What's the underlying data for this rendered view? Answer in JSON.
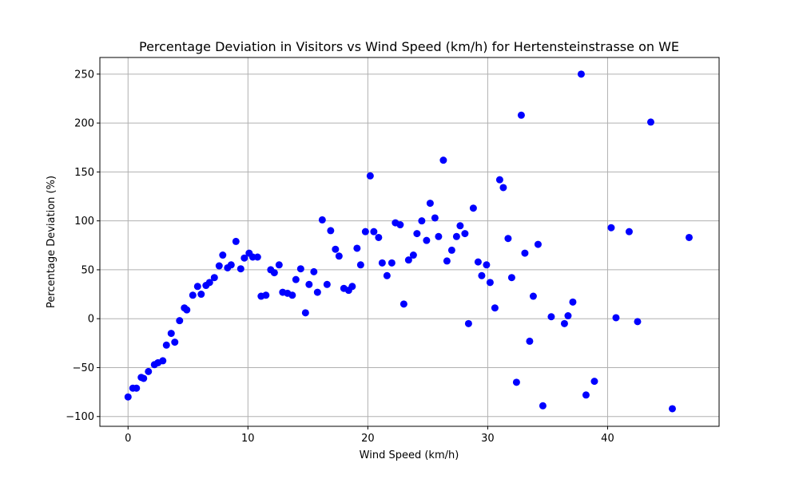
{
  "chart_data": {
    "type": "scatter",
    "title": "Percentage Deviation in Visitors vs Wind Speed (km/h) for Hertensteinstrasse on WE",
    "xlabel": "Wind Speed (km/h)",
    "ylabel": "Percentage Deviation (%)",
    "xlim": [
      -2.35,
      49.3
    ],
    "ylim": [
      -110,
      267
    ],
    "xticks": [
      0,
      10,
      20,
      30,
      40
    ],
    "yticks": [
      -100,
      -50,
      0,
      50,
      100,
      150,
      200,
      250
    ],
    "xtick_labels": [
      "0",
      "10",
      "20",
      "30",
      "40"
    ],
    "ytick_labels": [
      "−100",
      "−50",
      "0",
      "50",
      "100",
      "150",
      "200",
      "250"
    ],
    "grid": true,
    "marker_color": "#0000ff",
    "points": [
      [
        0.0,
        -80
      ],
      [
        0.4,
        -71
      ],
      [
        0.7,
        -71
      ],
      [
        1.1,
        -60
      ],
      [
        1.3,
        -61
      ],
      [
        1.7,
        -54
      ],
      [
        2.2,
        -47
      ],
      [
        2.5,
        -45
      ],
      [
        2.9,
        -43
      ],
      [
        3.2,
        -27
      ],
      [
        3.6,
        -15
      ],
      [
        3.9,
        -24
      ],
      [
        4.3,
        -2
      ],
      [
        4.7,
        11
      ],
      [
        4.9,
        9
      ],
      [
        5.4,
        24
      ],
      [
        5.8,
        33
      ],
      [
        6.1,
        25
      ],
      [
        6.5,
        34
      ],
      [
        6.8,
        37
      ],
      [
        7.2,
        42
      ],
      [
        7.6,
        54
      ],
      [
        7.9,
        65
      ],
      [
        8.3,
        52
      ],
      [
        8.6,
        55
      ],
      [
        9.0,
        79
      ],
      [
        9.4,
        51
      ],
      [
        9.7,
        62
      ],
      [
        10.1,
        67
      ],
      [
        10.4,
        63
      ],
      [
        10.8,
        63
      ],
      [
        11.1,
        23
      ],
      [
        11.5,
        24
      ],
      [
        11.9,
        50
      ],
      [
        12.2,
        47
      ],
      [
        12.6,
        55
      ],
      [
        12.9,
        27
      ],
      [
        13.3,
        26
      ],
      [
        13.7,
        24
      ],
      [
        14.0,
        40
      ],
      [
        14.4,
        51
      ],
      [
        14.8,
        6
      ],
      [
        15.1,
        35
      ],
      [
        15.5,
        48
      ],
      [
        15.8,
        27
      ],
      [
        16.2,
        101
      ],
      [
        16.6,
        35
      ],
      [
        16.9,
        90
      ],
      [
        17.3,
        71
      ],
      [
        17.6,
        64
      ],
      [
        18.0,
        31
      ],
      [
        18.4,
        29
      ],
      [
        18.7,
        33
      ],
      [
        19.1,
        72
      ],
      [
        19.4,
        55
      ],
      [
        19.8,
        89
      ],
      [
        20.2,
        146
      ],
      [
        20.5,
        89
      ],
      [
        20.9,
        83
      ],
      [
        21.2,
        57
      ],
      [
        21.6,
        44
      ],
      [
        22.0,
        57
      ],
      [
        22.3,
        98
      ],
      [
        22.7,
        96
      ],
      [
        23.0,
        15
      ],
      [
        23.4,
        60
      ],
      [
        23.8,
        65
      ],
      [
        24.1,
        87
      ],
      [
        24.5,
        100
      ],
      [
        24.9,
        80
      ],
      [
        25.2,
        118
      ],
      [
        25.6,
        103
      ],
      [
        25.9,
        84
      ],
      [
        26.3,
        162
      ],
      [
        26.6,
        59
      ],
      [
        27.0,
        70
      ],
      [
        27.4,
        84
      ],
      [
        27.7,
        95
      ],
      [
        28.1,
        87
      ],
      [
        28.4,
        -5
      ],
      [
        28.8,
        113
      ],
      [
        29.2,
        58
      ],
      [
        29.5,
        44
      ],
      [
        29.9,
        55
      ],
      [
        30.2,
        37
      ],
      [
        30.6,
        11
      ],
      [
        31.0,
        142
      ],
      [
        31.3,
        134
      ],
      [
        31.7,
        82
      ],
      [
        32.0,
        42
      ],
      [
        32.4,
        -65
      ],
      [
        32.8,
        208
      ],
      [
        33.1,
        67
      ],
      [
        33.5,
        -23
      ],
      [
        33.8,
        23
      ],
      [
        34.2,
        76
      ],
      [
        34.6,
        -89
      ],
      [
        35.3,
        2
      ],
      [
        36.4,
        -5
      ],
      [
        36.7,
        3
      ],
      [
        37.1,
        17
      ],
      [
        37.8,
        250
      ],
      [
        38.2,
        -78
      ],
      [
        38.9,
        -64
      ],
      [
        40.3,
        93
      ],
      [
        40.7,
        1
      ],
      [
        41.8,
        89
      ],
      [
        42.5,
        -3
      ],
      [
        43.6,
        201
      ],
      [
        45.4,
        -92
      ],
      [
        46.8,
        83
      ]
    ]
  }
}
